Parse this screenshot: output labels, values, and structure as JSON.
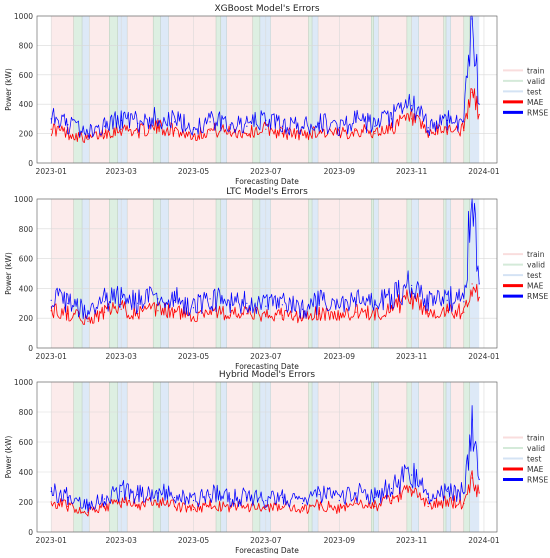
{
  "figure": {
    "legend_items": [
      "train",
      "valid",
      "test",
      "MAE",
      "RMSE"
    ]
  },
  "colors": {
    "train": "#f5c6c6",
    "valid": "#cfe8d5",
    "test": "#cfe0f3",
    "mae": "#ff0000",
    "rmse": "#0000ff",
    "grid": "#d9d9d9"
  },
  "chart_data": [
    {
      "type": "line",
      "title": "XGBoost Model's Errors",
      "xlabel": "Forecasting Date",
      "ylabel": "Power (kW)",
      "ylim": [
        0,
        1000
      ],
      "yticks": [
        0,
        200,
        400,
        600,
        800,
        1000
      ],
      "xlim": [
        "2022-12-20",
        "2024-01-12"
      ],
      "xticks": [
        "2023-01",
        "2023-03",
        "2023-05",
        "2023-07",
        "2023-09",
        "2023-11",
        "2024-01"
      ],
      "grid": true,
      "legend_position": "right",
      "series": [
        {
          "name": "MAE",
          "x": [
            "2023-01-01",
            "2023-01-15",
            "2023-02-01",
            "2023-02-15",
            "2023-03-01",
            "2023-03-15",
            "2023-04-01",
            "2023-04-15",
            "2023-05-01",
            "2023-05-15",
            "2023-06-01",
            "2023-06-15",
            "2023-07-01",
            "2023-07-15",
            "2023-08-01",
            "2023-08-15",
            "2023-09-01",
            "2023-09-15",
            "2023-10-01",
            "2023-10-15",
            "2023-11-01",
            "2023-11-15",
            "2023-12-01",
            "2023-12-15",
            "2023-12-22",
            "2023-12-28"
          ],
          "values": [
            230,
            200,
            160,
            200,
            230,
            210,
            240,
            220,
            180,
            220,
            210,
            200,
            230,
            200,
            190,
            210,
            190,
            220,
            200,
            240,
            300,
            190,
            230,
            220,
            480,
            330
          ]
        },
        {
          "name": "RMSE",
          "x": [
            "2023-01-01",
            "2023-01-15",
            "2023-02-01",
            "2023-02-15",
            "2023-03-01",
            "2023-03-15",
            "2023-04-01",
            "2023-04-15",
            "2023-05-01",
            "2023-05-15",
            "2023-06-01",
            "2023-06-15",
            "2023-07-01",
            "2023-07-15",
            "2023-08-01",
            "2023-08-15",
            "2023-09-01",
            "2023-09-15",
            "2023-10-01",
            "2023-10-15",
            "2023-11-01",
            "2023-11-15",
            "2023-12-01",
            "2023-12-15",
            "2023-12-22",
            "2023-12-28"
          ],
          "values": [
            300,
            260,
            200,
            250,
            290,
            270,
            300,
            280,
            230,
            280,
            260,
            250,
            290,
            250,
            240,
            270,
            240,
            280,
            250,
            300,
            390,
            240,
            290,
            280,
            980,
            400
          ]
        }
      ],
      "train_spans": [
        [
          "2023-01-01",
          "2023-01-20"
        ],
        [
          "2023-02-02",
          "2023-02-19"
        ],
        [
          "2023-03-06",
          "2023-03-28"
        ],
        [
          "2023-04-10",
          "2023-05-20"
        ],
        [
          "2023-05-29",
          "2023-06-20"
        ],
        [
          "2023-07-05",
          "2023-08-06"
        ],
        [
          "2023-08-14",
          "2023-09-28"
        ],
        [
          "2023-10-04",
          "2023-10-28"
        ],
        [
          "2023-11-07",
          "2023-11-28"
        ],
        [
          "2023-12-04",
          "2023-12-15"
        ]
      ],
      "valid_spans": [
        [
          "2023-01-20",
          "2023-01-27"
        ],
        [
          "2023-02-19",
          "2023-02-26"
        ],
        [
          "2023-03-28",
          "2023-04-03"
        ],
        [
          "2023-05-20",
          "2023-05-24"
        ],
        [
          "2023-06-20",
          "2023-06-26"
        ],
        [
          "2023-08-06",
          "2023-08-09"
        ],
        [
          "2023-09-28",
          "2023-09-30"
        ],
        [
          "2023-10-28",
          "2023-11-01"
        ],
        [
          "2023-11-28",
          "2023-11-30"
        ],
        [
          "2023-12-15",
          "2023-12-20"
        ]
      ],
      "test_spans": [
        [
          "2023-01-27",
          "2023-02-02"
        ],
        [
          "2023-02-26",
          "2023-03-06"
        ],
        [
          "2023-04-03",
          "2023-04-10"
        ],
        [
          "2023-05-24",
          "2023-05-29"
        ],
        [
          "2023-06-26",
          "2023-07-05"
        ],
        [
          "2023-08-09",
          "2023-08-14"
        ],
        [
          "2023-09-30",
          "2023-10-04"
        ],
        [
          "2023-11-01",
          "2023-11-07"
        ],
        [
          "2023-11-30",
          "2023-12-04"
        ],
        [
          "2023-12-20",
          "2023-12-28"
        ]
      ]
    },
    {
      "type": "line",
      "title": "LTC Model's Errors",
      "xlabel": "Forecasting Date",
      "ylabel": "Power (kW)",
      "ylim": [
        0,
        1000
      ],
      "yticks": [
        0,
        200,
        400,
        600,
        800,
        1000
      ],
      "xlim": [
        "2022-12-20",
        "2024-01-12"
      ],
      "xticks": [
        "2023-01",
        "2023-03",
        "2023-05",
        "2023-07",
        "2023-09",
        "2023-11",
        "2024-01"
      ],
      "grid": true,
      "legend_position": "right",
      "series": [
        {
          "name": "MAE",
          "x": [
            "2023-01-01",
            "2023-01-15",
            "2023-02-01",
            "2023-02-15",
            "2023-03-01",
            "2023-03-15",
            "2023-04-01",
            "2023-04-15",
            "2023-05-01",
            "2023-05-15",
            "2023-06-01",
            "2023-06-15",
            "2023-07-01",
            "2023-07-15",
            "2023-08-01",
            "2023-08-15",
            "2023-09-01",
            "2023-09-15",
            "2023-10-01",
            "2023-10-15",
            "2023-11-01",
            "2023-11-15",
            "2023-12-01",
            "2023-12-15",
            "2023-12-22",
            "2023-12-28"
          ],
          "values": [
            250,
            230,
            180,
            240,
            260,
            230,
            250,
            240,
            210,
            250,
            220,
            230,
            210,
            220,
            200,
            230,
            210,
            240,
            220,
            270,
            330,
            230,
            250,
            240,
            430,
            340
          ]
        },
        {
          "name": "RMSE",
          "x": [
            "2023-01-01",
            "2023-01-15",
            "2023-02-01",
            "2023-02-15",
            "2023-03-01",
            "2023-03-15",
            "2023-04-01",
            "2023-04-15",
            "2023-05-01",
            "2023-05-15",
            "2023-06-01",
            "2023-06-15",
            "2023-07-01",
            "2023-07-15",
            "2023-08-01",
            "2023-08-15",
            "2023-09-01",
            "2023-09-15",
            "2023-10-01",
            "2023-10-15",
            "2023-11-01",
            "2023-11-15",
            "2023-12-01",
            "2023-12-15",
            "2023-12-22",
            "2023-12-28"
          ],
          "values": [
            320,
            300,
            230,
            310,
            330,
            300,
            330,
            320,
            270,
            330,
            290,
            300,
            280,
            290,
            260,
            300,
            270,
            310,
            290,
            340,
            420,
            300,
            320,
            310,
            1000,
            430
          ]
        }
      ],
      "train_spans": [
        [
          "2023-01-01",
          "2023-01-20"
        ],
        [
          "2023-02-02",
          "2023-02-19"
        ],
        [
          "2023-03-06",
          "2023-03-28"
        ],
        [
          "2023-04-10",
          "2023-05-20"
        ],
        [
          "2023-05-29",
          "2023-06-20"
        ],
        [
          "2023-07-05",
          "2023-08-06"
        ],
        [
          "2023-08-14",
          "2023-09-28"
        ],
        [
          "2023-10-04",
          "2023-10-28"
        ],
        [
          "2023-11-07",
          "2023-11-28"
        ],
        [
          "2023-12-04",
          "2023-12-15"
        ]
      ],
      "valid_spans": [
        [
          "2023-01-20",
          "2023-01-27"
        ],
        [
          "2023-02-19",
          "2023-02-26"
        ],
        [
          "2023-03-28",
          "2023-04-03"
        ],
        [
          "2023-05-20",
          "2023-05-24"
        ],
        [
          "2023-06-20",
          "2023-06-26"
        ],
        [
          "2023-08-06",
          "2023-08-09"
        ],
        [
          "2023-09-28",
          "2023-09-30"
        ],
        [
          "2023-10-28",
          "2023-11-01"
        ],
        [
          "2023-11-28",
          "2023-11-30"
        ],
        [
          "2023-12-15",
          "2023-12-20"
        ]
      ],
      "test_spans": [
        [
          "2023-01-27",
          "2023-02-02"
        ],
        [
          "2023-02-26",
          "2023-03-06"
        ],
        [
          "2023-04-03",
          "2023-04-10"
        ],
        [
          "2023-05-24",
          "2023-05-29"
        ],
        [
          "2023-06-26",
          "2023-07-05"
        ],
        [
          "2023-08-09",
          "2023-08-14"
        ],
        [
          "2023-09-30",
          "2023-10-04"
        ],
        [
          "2023-11-01",
          "2023-11-07"
        ],
        [
          "2023-11-30",
          "2023-12-04"
        ],
        [
          "2023-12-20",
          "2023-12-28"
        ]
      ]
    },
    {
      "type": "line",
      "title": "Hybrid Model's Errors",
      "xlabel": "Forecasting Date",
      "ylabel": "Power (kW)",
      "ylim": [
        0,
        1000
      ],
      "yticks": [
        0,
        200,
        400,
        600,
        800,
        1000
      ],
      "xlim": [
        "2022-12-20",
        "2024-01-12"
      ],
      "xticks": [
        "2023-01",
        "2023-03",
        "2023-05",
        "2023-07",
        "2023-09",
        "2023-11",
        "2024-01"
      ],
      "grid": true,
      "legend_position": "right",
      "series": [
        {
          "name": "MAE",
          "x": [
            "2023-01-01",
            "2023-01-15",
            "2023-02-01",
            "2023-02-15",
            "2023-03-01",
            "2023-03-15",
            "2023-04-01",
            "2023-04-15",
            "2023-05-01",
            "2023-05-15",
            "2023-06-01",
            "2023-06-15",
            "2023-07-01",
            "2023-07-15",
            "2023-08-01",
            "2023-08-15",
            "2023-09-01",
            "2023-09-15",
            "2023-10-01",
            "2023-10-15",
            "2023-11-01",
            "2023-11-15",
            "2023-12-01",
            "2023-12-15",
            "2023-12-22",
            "2023-12-28"
          ],
          "values": [
            200,
            170,
            130,
            160,
            200,
            180,
            190,
            170,
            150,
            180,
            160,
            170,
            150,
            170,
            140,
            180,
            150,
            190,
            170,
            210,
            280,
            170,
            200,
            190,
            360,
            260
          ]
        },
        {
          "name": "RMSE",
          "x": [
            "2023-01-01",
            "2023-01-15",
            "2023-02-01",
            "2023-02-15",
            "2023-03-01",
            "2023-03-15",
            "2023-04-01",
            "2023-04-15",
            "2023-05-01",
            "2023-05-15",
            "2023-06-01",
            "2023-06-15",
            "2023-07-01",
            "2023-07-15",
            "2023-08-01",
            "2023-08-15",
            "2023-09-01",
            "2023-09-15",
            "2023-10-01",
            "2023-10-15",
            "2023-11-01",
            "2023-11-15",
            "2023-12-01",
            "2023-12-15",
            "2023-12-22",
            "2023-12-28"
          ],
          "values": [
            270,
            230,
            180,
            220,
            270,
            250,
            260,
            230,
            210,
            250,
            220,
            230,
            210,
            230,
            190,
            250,
            210,
            260,
            230,
            290,
            380,
            230,
            270,
            260,
            750,
            350
          ]
        }
      ],
      "train_spans": [
        [
          "2023-01-01",
          "2023-01-20"
        ],
        [
          "2023-02-02",
          "2023-02-19"
        ],
        [
          "2023-03-06",
          "2023-03-28"
        ],
        [
          "2023-04-10",
          "2023-05-20"
        ],
        [
          "2023-05-29",
          "2023-06-20"
        ],
        [
          "2023-07-05",
          "2023-08-06"
        ],
        [
          "2023-08-14",
          "2023-09-28"
        ],
        [
          "2023-10-04",
          "2023-10-28"
        ],
        [
          "2023-11-07",
          "2023-11-28"
        ],
        [
          "2023-12-04",
          "2023-12-15"
        ]
      ],
      "valid_spans": [
        [
          "2023-01-20",
          "2023-01-27"
        ],
        [
          "2023-02-19",
          "2023-02-26"
        ],
        [
          "2023-03-28",
          "2023-04-03"
        ],
        [
          "2023-05-20",
          "2023-05-24"
        ],
        [
          "2023-06-20",
          "2023-06-26"
        ],
        [
          "2023-08-06",
          "2023-08-09"
        ],
        [
          "2023-09-28",
          "2023-09-30"
        ],
        [
          "2023-10-28",
          "2023-11-01"
        ],
        [
          "2023-11-28",
          "2023-11-30"
        ],
        [
          "2023-12-15",
          "2023-12-20"
        ]
      ],
      "test_spans": [
        [
          "2023-01-27",
          "2023-02-02"
        ],
        [
          "2023-02-26",
          "2023-03-06"
        ],
        [
          "2023-04-03",
          "2023-04-10"
        ],
        [
          "2023-05-24",
          "2023-05-29"
        ],
        [
          "2023-06-26",
          "2023-07-05"
        ],
        [
          "2023-08-09",
          "2023-08-14"
        ],
        [
          "2023-09-30",
          "2023-10-04"
        ],
        [
          "2023-11-01",
          "2023-11-07"
        ],
        [
          "2023-11-30",
          "2023-12-04"
        ],
        [
          "2023-12-20",
          "2023-12-28"
        ]
      ]
    }
  ]
}
